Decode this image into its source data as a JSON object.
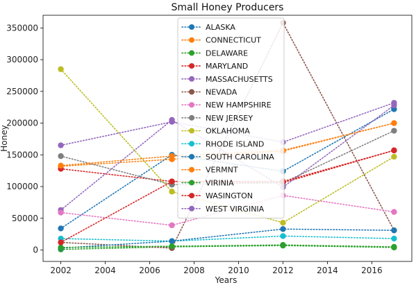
{
  "chart_data": {
    "type": "line",
    "title": "Small Honey Producers",
    "xlabel": "Years",
    "ylabel": "Honey",
    "xlim": [
      2001.2,
      2017.8
    ],
    "ylim": [
      -18000,
      370000
    ],
    "x_ticks": [
      2002,
      2004,
      2006,
      2008,
      2010,
      2012,
      2014,
      2016
    ],
    "y_ticks": [
      0,
      50000,
      100000,
      150000,
      200000,
      250000,
      300000,
      350000
    ],
    "x": [
      2002,
      2007,
      2012,
      2017
    ],
    "legend_position": "top-center",
    "line_style": "dotted",
    "grid": false,
    "series": [
      {
        "name": "ALASKA",
        "color": "#1f77b4",
        "values": [
          34000,
          150000,
          124000,
          222000
        ]
      },
      {
        "name": "CONNECTICUT",
        "color": "#ff7f0e",
        "values": [
          132000,
          143000,
          156000,
          200000
        ]
      },
      {
        "name": "DELAWARE",
        "color": "#2ca02c",
        "values": [
          1000,
          5000,
          7000,
          4000
        ]
      },
      {
        "name": "MARYLAND",
        "color": "#d62728",
        "values": [
          128000,
          108000,
          106000,
          157000
        ]
      },
      {
        "name": "MASSACHUSETTS",
        "color": "#9467bd",
        "values": [
          63000,
          205000,
          99000,
          228000
        ]
      },
      {
        "name": "NEVADA",
        "color": "#8c564b",
        "values": [
          12000,
          3000,
          358000,
          31000
        ]
      },
      {
        "name": "NEW HAMPSHIRE",
        "color": "#e377c2",
        "values": [
          59000,
          39000,
          86000,
          60000
        ]
      },
      {
        "name": "NEW JERSEY",
        "color": "#7f7f7f",
        "values": [
          148000,
          103000,
          106000,
          188000
        ]
      },
      {
        "name": "OKLAHOMA",
        "color": "#bcbd22",
        "values": [
          285000,
          92000,
          43000,
          147000
        ]
      },
      {
        "name": "RHODE ISLAND",
        "color": "#17becf",
        "values": [
          18000,
          14000,
          22000,
          18000
        ]
      },
      {
        "name": "SOUTH CAROLINA",
        "color": "#1f77b4",
        "values": [
          3000,
          14000,
          33000,
          31000
        ]
      },
      {
        "name": "VERMNT",
        "color": "#ff7f0e",
        "values": [
          133000,
          148000,
          157000,
          200000
        ]
      },
      {
        "name": "VIRINIA",
        "color": "#2ca02c",
        "values": [
          4000,
          6000,
          8000,
          5000
        ]
      },
      {
        "name": "WASINGTON",
        "color": "#d62728",
        "values": [
          12000,
          108000,
          108000,
          157000
        ]
      },
      {
        "name": "WEST VIRGINIA",
        "color": "#9467bd",
        "values": [
          165000,
          202000,
          170000,
          232000
        ]
      }
    ]
  }
}
